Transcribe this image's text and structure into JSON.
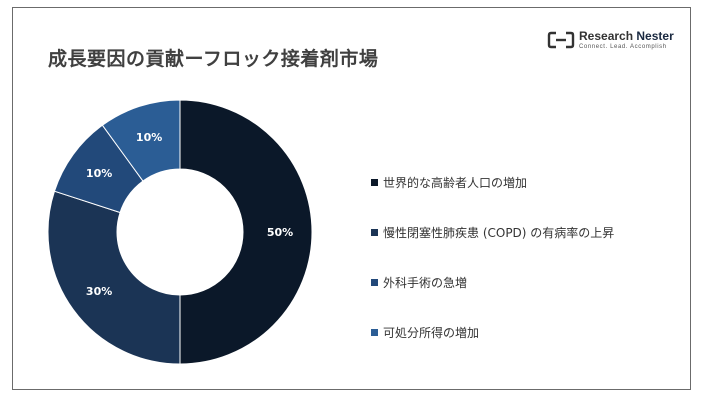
{
  "header": {
    "title": "成長要因の貢献ーフロック接着剤市場"
  },
  "logo": {
    "name_part1": "Research",
    "name_part2": "Nester",
    "tagline": "Connect. Lead. Accomplish",
    "icon": "research-nester-logo-icon"
  },
  "colors": {
    "background": "#ffffff",
    "frame_border": "#6b6b6b",
    "label_dark": "#ffffff"
  },
  "chart_data": {
    "type": "pie",
    "donut": true,
    "title": "",
    "legend_position": "right",
    "slices": [
      {
        "label": "世界的な高齢者人口の増加",
        "value": 50,
        "display": "50%",
        "color": "#0b1829"
      },
      {
        "label": "慢性閉塞性肺疾患 (COPD) の有病率の上昇",
        "value": 30,
        "display": "30%",
        "color": "#1b3455"
      },
      {
        "label": "外科手術の急増",
        "value": 10,
        "display": "10%",
        "color": "#22497a"
      },
      {
        "label": "可処分所得の増加",
        "value": 10,
        "display": "10%",
        "color": "#2b5d95"
      }
    ]
  }
}
